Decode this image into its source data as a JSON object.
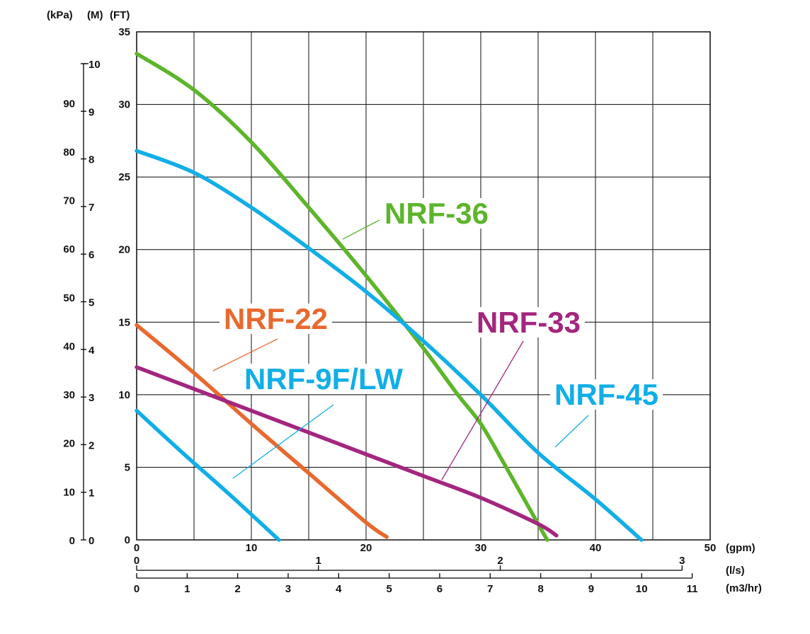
{
  "chart_data": {
    "type": "line",
    "title": "",
    "xlabel": "",
    "ylabel": "",
    "xlim": [
      0,
      50
    ],
    "ylim": [
      0,
      35
    ],
    "grid": true,
    "x_axes": {
      "gpm": {
        "unit": "(gpm)",
        "ticks": [
          "0",
          "10",
          "20",
          "30",
          "40",
          "50"
        ],
        "values": [
          0,
          10,
          20,
          30,
          40,
          50
        ]
      },
      "ls": {
        "unit": "(l/s)",
        "ticks": [
          "0",
          "1",
          "2",
          "3"
        ],
        "values": [
          0,
          1,
          2,
          3
        ]
      },
      "m3hr": {
        "unit": "(m3/hr)",
        "ticks": [
          "0",
          "1",
          "2",
          "3",
          "4",
          "5",
          "6",
          "7",
          "8",
          "9",
          "10",
          "11"
        ],
        "values": [
          0,
          1,
          2,
          3,
          4,
          5,
          6,
          7,
          8,
          9,
          10,
          11
        ]
      }
    },
    "y_axes": {
      "ft": {
        "unit": "(FT)",
        "ticks": [
          "0",
          "5",
          "10",
          "15",
          "20",
          "25",
          "30",
          "35"
        ],
        "values": [
          0,
          5,
          10,
          15,
          20,
          25,
          30,
          35
        ]
      },
      "m": {
        "unit": "(M)",
        "ticks": [
          "0",
          "1",
          "2",
          "3",
          "4",
          "5",
          "6",
          "7",
          "8",
          "9",
          "10"
        ],
        "values": [
          0,
          1,
          2,
          3,
          4,
          5,
          6,
          7,
          8,
          9,
          10
        ]
      },
      "kpa": {
        "unit": "(kPa)",
        "ticks": [
          "0",
          "10",
          "20",
          "30",
          "40",
          "50",
          "60",
          "70",
          "80",
          "90"
        ],
        "values": [
          0,
          10,
          20,
          30,
          40,
          50,
          60,
          70,
          80,
          90
        ]
      }
    },
    "series": [
      {
        "name": "NRF-36",
        "color": "#5db52b",
        "x": [
          0,
          5,
          10,
          15,
          20,
          25,
          28,
          30,
          32,
          34,
          35.5,
          35.8
        ],
        "y": [
          33.5,
          31,
          27.4,
          22.9,
          18.2,
          13.2,
          10,
          8,
          5.3,
          2.5,
          0.4,
          0
        ]
      },
      {
        "name": "NRF-45",
        "color": "#11aee7",
        "x": [
          0,
          5,
          10,
          15,
          20,
          25,
          30,
          35,
          40,
          44
        ],
        "y": [
          26.8,
          25.3,
          22.9,
          20.1,
          17.1,
          13.7,
          10,
          6,
          2.8,
          0
        ]
      },
      {
        "name": "NRF-22",
        "color": "#e8692f",
        "x": [
          0,
          5,
          10,
          15,
          20,
          21.8
        ],
        "y": [
          14.8,
          11.5,
          8,
          4.6,
          1.2,
          0.2
        ]
      },
      {
        "name": "NRF-33",
        "color": "#a3267f",
        "x": [
          0,
          5,
          10,
          15,
          20,
          25,
          30,
          35,
          36.6
        ],
        "y": [
          11.9,
          10.4,
          8.9,
          7.4,
          5.9,
          4.4,
          2.9,
          1.1,
          0.3
        ]
      },
      {
        "name": "NRF-9F/LW",
        "color": "#11aee7",
        "x": [
          0,
          4,
          8,
          12.4
        ],
        "y": [
          8.9,
          6,
          3.2,
          0
        ]
      }
    ]
  }
}
